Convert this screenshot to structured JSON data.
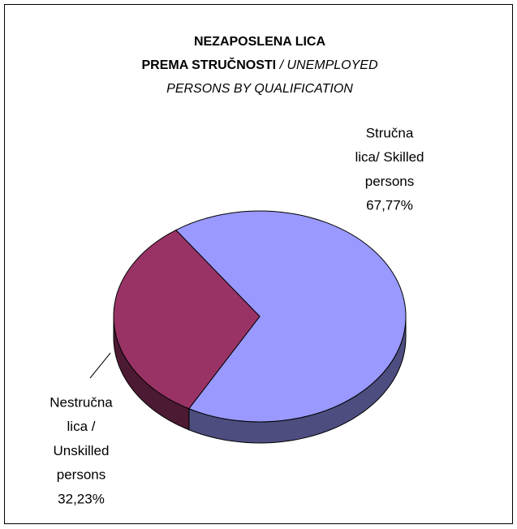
{
  "chart_data": {
    "type": "pie",
    "title": [
      "NEZAPOSLENA LICA",
      "PREMA STRUČNOSTI"
    ],
    "subtitle": [
      "/ UNEMPLOYED",
      "PERSONS BY QUALIFICATION"
    ],
    "categories": [
      [
        "Stručna",
        "lica/ Skilled",
        "persons"
      ],
      [
        "Nestručna",
        "lica /",
        "Unskilled",
        "persons"
      ]
    ],
    "values": [
      67.77,
      32.23
    ],
    "value_labels": [
      "67,77%",
      "32,23%"
    ],
    "colors": [
      "#9999ff",
      "#993366"
    ],
    "side_colors": [
      "#4d4d80",
      "#4d1a33"
    ]
  }
}
